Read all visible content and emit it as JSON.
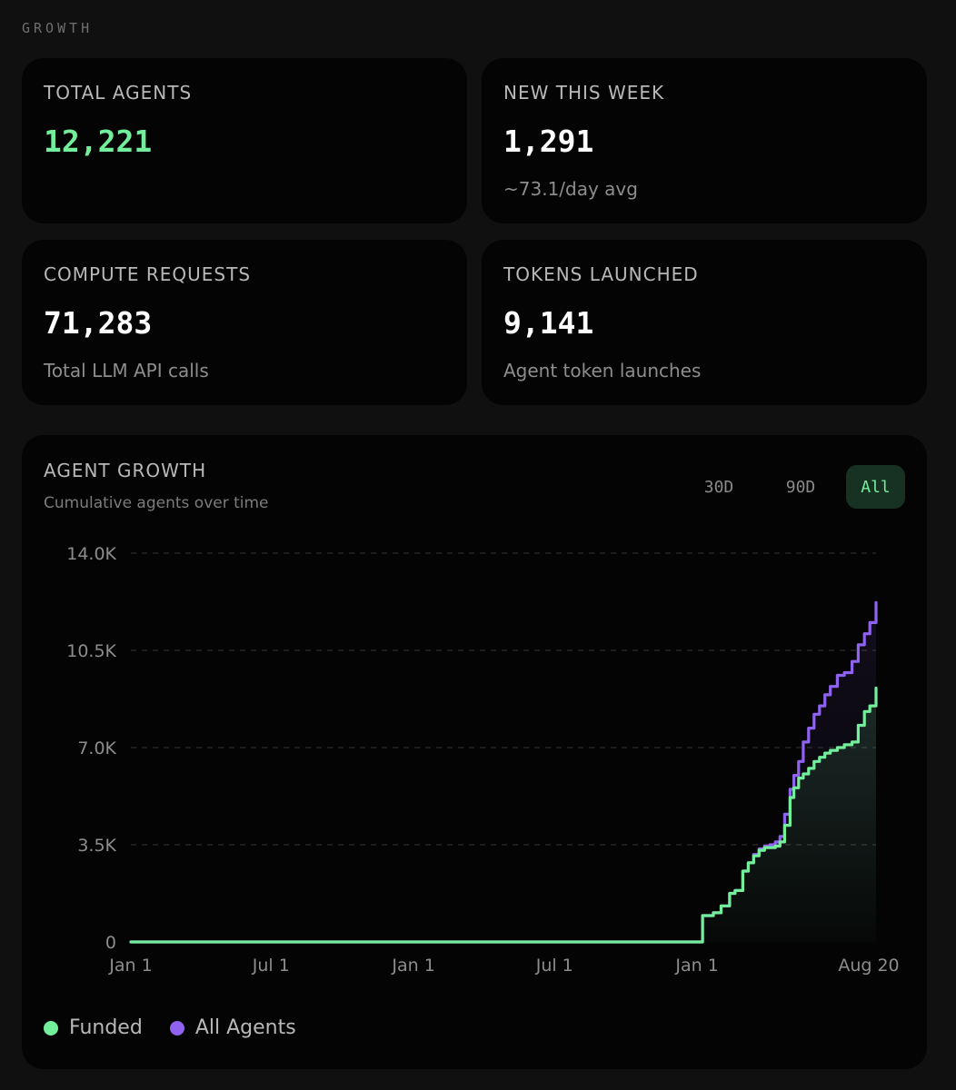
{
  "section_label": "GROWTH",
  "stats": [
    {
      "label": "TOTAL AGENTS",
      "value": "12,221",
      "sub": ""
    },
    {
      "label": "NEW THIS WEEK",
      "value": "1,291",
      "sub": "~73.1/day avg"
    },
    {
      "label": "COMPUTE REQUESTS",
      "value": "71,283",
      "sub": "Total LLM API calls"
    },
    {
      "label": "TOKENS LAUNCHED",
      "value": "9,141",
      "sub": "Agent token launches"
    }
  ],
  "chart_card": {
    "title": "AGENT GROWTH",
    "subtitle": "Cumulative agents over time",
    "ranges": [
      {
        "label": "30D",
        "active": false
      },
      {
        "label": "90D",
        "active": false
      },
      {
        "label": "All",
        "active": true
      }
    ]
  },
  "colors": {
    "funded": "#73ef9c",
    "all_agents": "#8f63f0",
    "background": "#0f100f",
    "card": "#040404",
    "grid": "#2c2c2c"
  },
  "chart_data": {
    "type": "line",
    "title": "AGENT GROWTH",
    "subtitle": "Cumulative agents over time",
    "xlabel": "",
    "ylabel": "",
    "ylim": [
      0,
      14000
    ],
    "y_ticks": [
      "0",
      "3.5K",
      "7.0K",
      "10.5K",
      "14.0K"
    ],
    "y_tick_values": [
      0,
      3500,
      7000,
      10500,
      14000
    ],
    "x_ticks": [
      "Jan 1",
      "Jul 1",
      "Jan 1",
      "Jul 1",
      "Jan 1",
      "Aug 20"
    ],
    "x_tick_dates": [
      "2023-01-01",
      "2023-07-01",
      "2024-01-01",
      "2024-07-01",
      "2025-01-01",
      "2025-08-20"
    ],
    "grid": "horizontal dashed",
    "legend_position": "bottom-left",
    "series": [
      {
        "name": "Funded",
        "color": "#73ef9c",
        "fill": true,
        "x": [
          "2023-01-01",
          "2025-01-01",
          "2025-01-08",
          "2025-01-22",
          "2025-02-01",
          "2025-02-12",
          "2025-02-19",
          "2025-03-01",
          "2025-03-08",
          "2025-03-15",
          "2025-03-22",
          "2025-03-29",
          "2025-04-05",
          "2025-04-12",
          "2025-04-18",
          "2025-04-24",
          "2025-05-01",
          "2025-05-06",
          "2025-05-12",
          "2025-05-18",
          "2025-05-25",
          "2025-06-01",
          "2025-06-08",
          "2025-06-15",
          "2025-06-22",
          "2025-07-01",
          "2025-07-10",
          "2025-07-20",
          "2025-07-28",
          "2025-08-05",
          "2025-08-12",
          "2025-08-20"
        ],
        "y": [
          0,
          0,
          950,
          1050,
          1300,
          1750,
          1850,
          2550,
          2850,
          3100,
          3300,
          3400,
          3400,
          3450,
          3600,
          4200,
          5200,
          5550,
          5900,
          6050,
          6250,
          6500,
          6650,
          6800,
          6900,
          7000,
          7100,
          7200,
          7800,
          8300,
          8500,
          9141
        ]
      },
      {
        "name": "All Agents",
        "color": "#8f63f0",
        "fill": false,
        "x": [
          "2023-01-01",
          "2025-01-01",
          "2025-01-08",
          "2025-01-22",
          "2025-02-01",
          "2025-02-12",
          "2025-02-19",
          "2025-03-01",
          "2025-03-08",
          "2025-03-15",
          "2025-03-22",
          "2025-03-29",
          "2025-04-05",
          "2025-04-12",
          "2025-04-18",
          "2025-04-24",
          "2025-05-01",
          "2025-05-06",
          "2025-05-12",
          "2025-05-18",
          "2025-05-25",
          "2025-06-01",
          "2025-06-08",
          "2025-06-15",
          "2025-06-22",
          "2025-07-01",
          "2025-07-10",
          "2025-07-20",
          "2025-07-28",
          "2025-08-05",
          "2025-08-12",
          "2025-08-20"
        ],
        "y": [
          0,
          0,
          950,
          1050,
          1300,
          1750,
          1850,
          2550,
          2850,
          3150,
          3350,
          3450,
          3500,
          3600,
          3800,
          4600,
          5500,
          6000,
          6500,
          7200,
          7700,
          8200,
          8500,
          8900,
          9200,
          9600,
          9700,
          10100,
          10700,
          11100,
          11500,
          12221
        ]
      }
    ]
  }
}
